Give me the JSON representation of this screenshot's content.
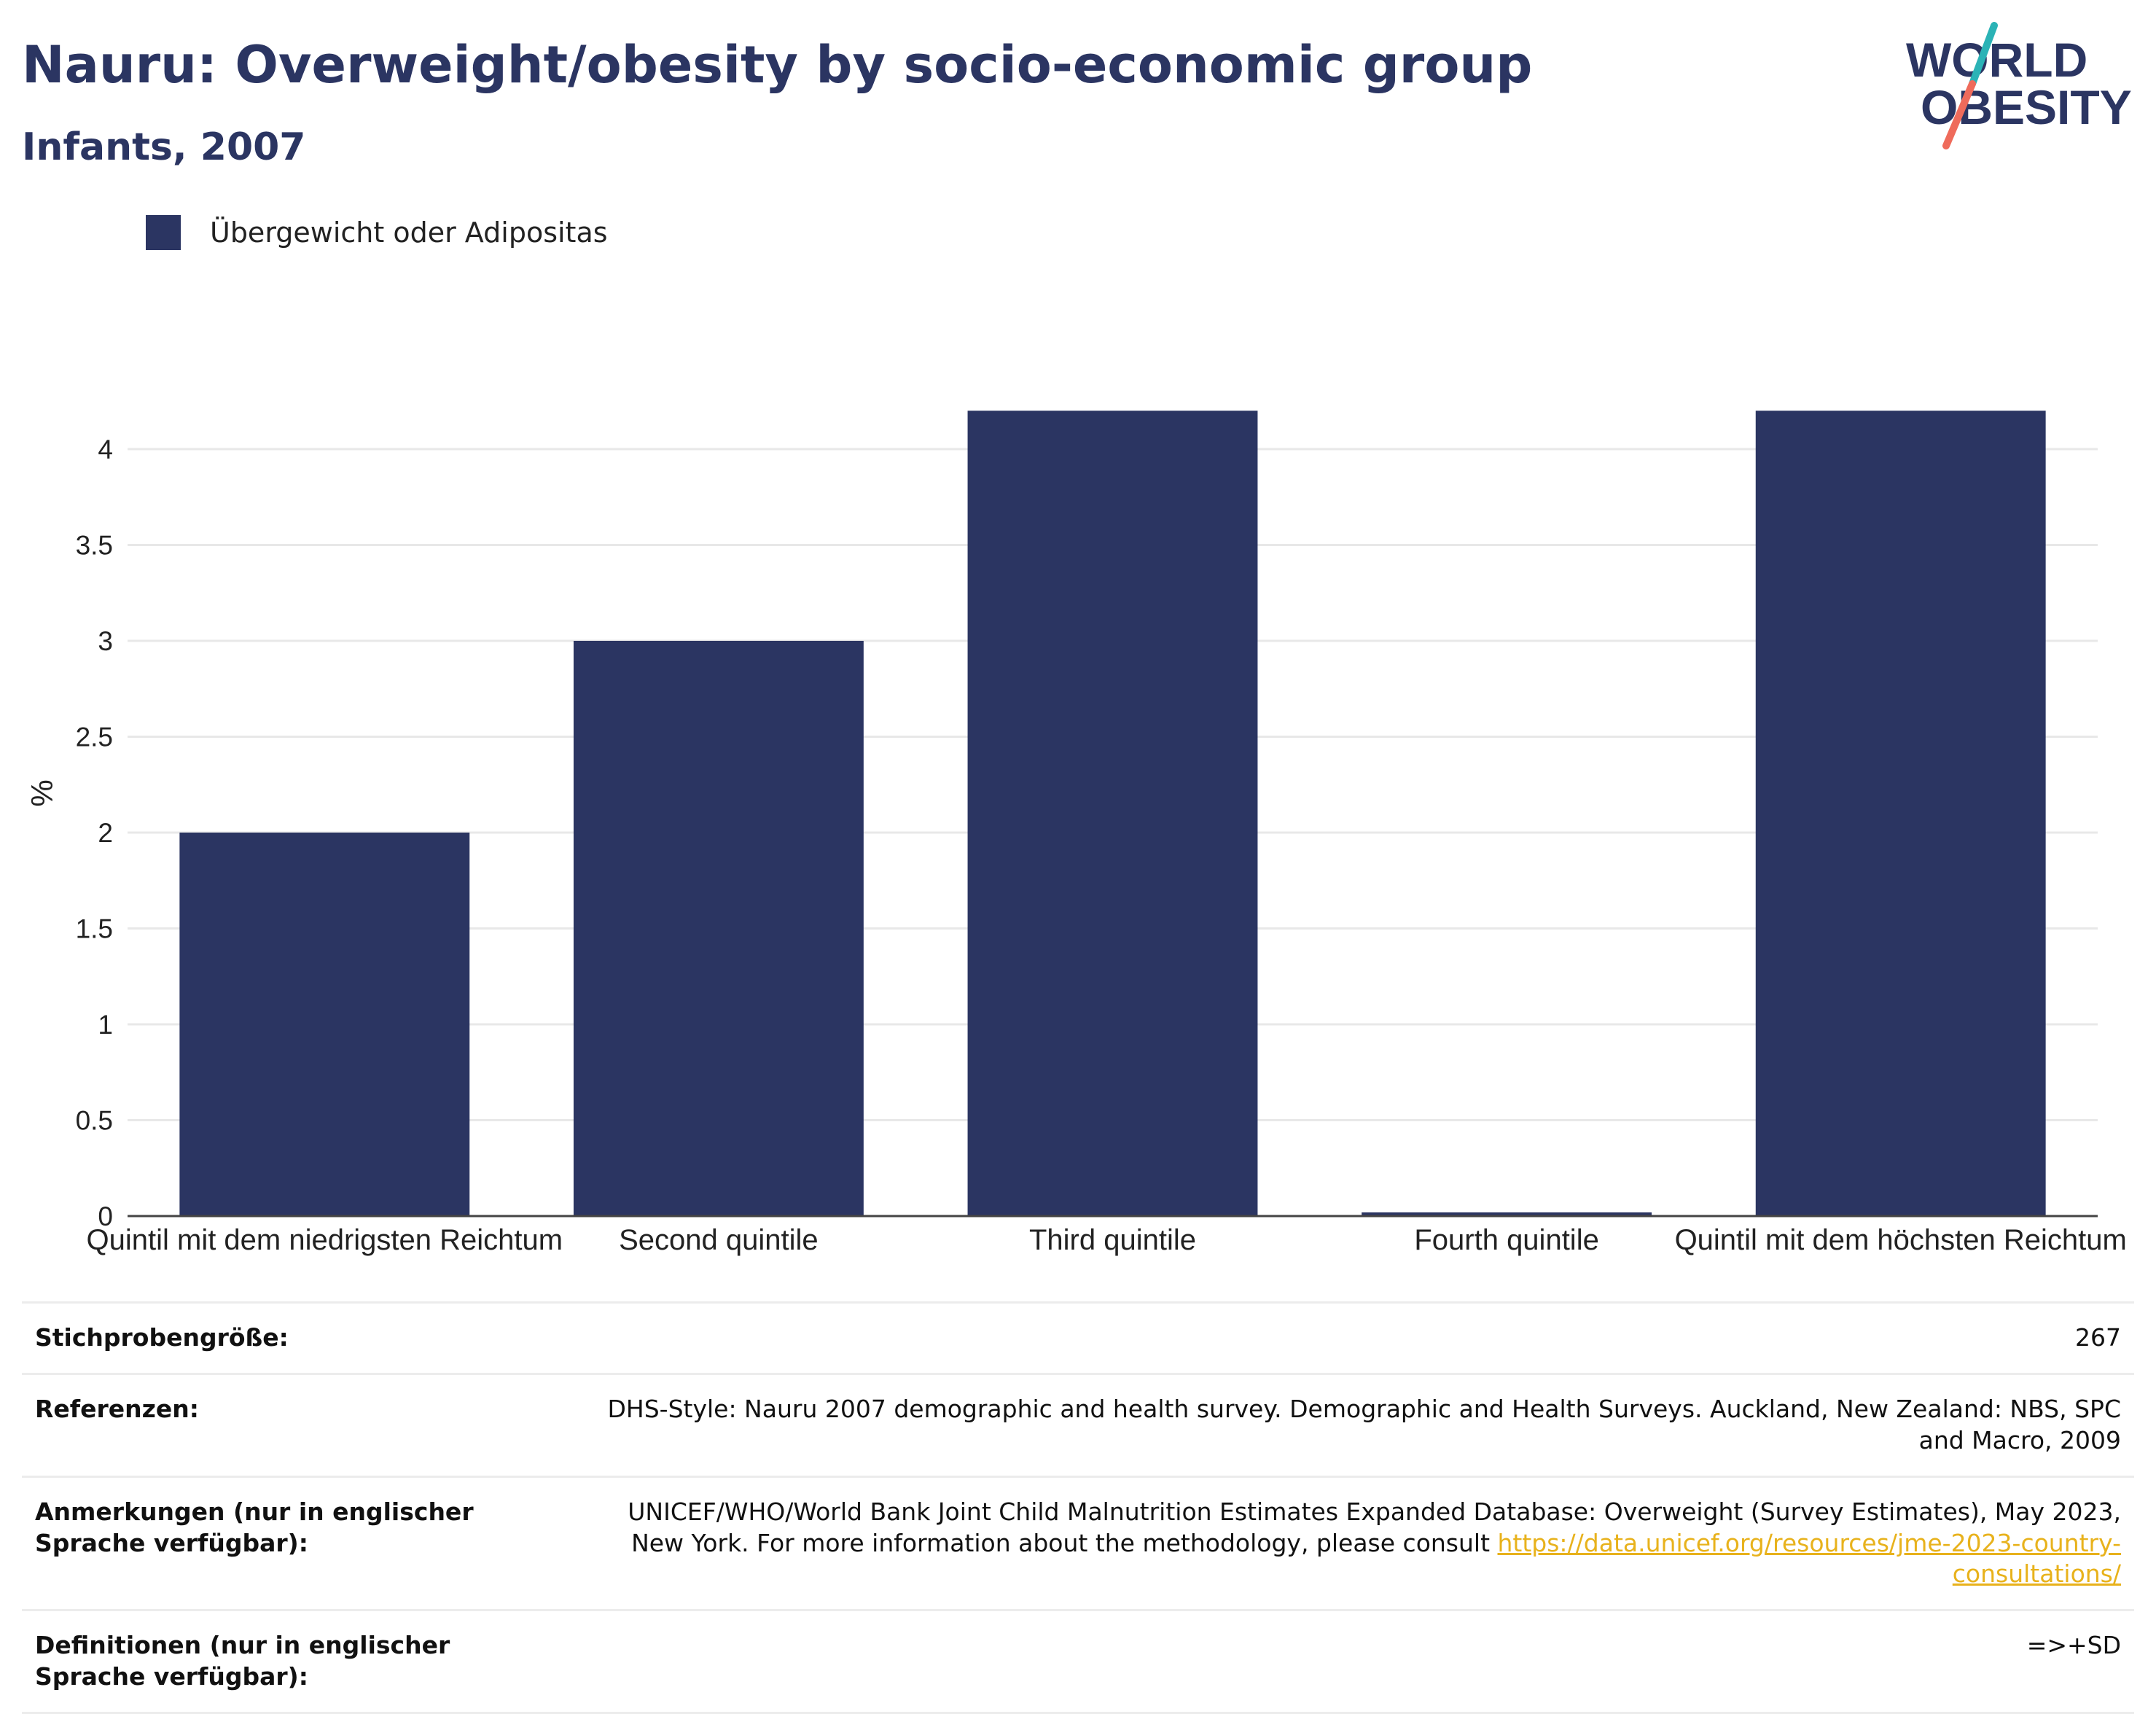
{
  "header": {
    "title": "Nauru: Overweight/obesity by socio-economic group",
    "subtitle": "Infants, 2007"
  },
  "logo": {
    "line1": "WORLD",
    "line2": "OBESITY"
  },
  "colors": {
    "bar": "#2b3562",
    "title": "#2b3562",
    "link": "#e8b21c",
    "logo_teal": "#2bb3b6",
    "logo_coral": "#ef6b5b"
  },
  "chart_data": {
    "type": "bar",
    "categories": [
      "Quintil mit dem niedrigsten Reichtum",
      "Second quintile",
      "Third quintile",
      "Fourth quintile",
      "Quintil mit dem höchsten Reichtum"
    ],
    "series": [
      {
        "name": "Übergewicht oder Adipositas",
        "values": [
          2.0,
          3.0,
          4.2,
          0.0,
          4.2
        ]
      }
    ],
    "ylabel": "%",
    "ylim": [
      0,
      4.2
    ],
    "yticks": [
      0,
      0.5,
      1,
      1.5,
      2,
      2.5,
      3,
      3.5,
      4
    ],
    "ytick_labels": [
      "0",
      "0.5",
      "1",
      "1.5",
      "2",
      "2.5",
      "3",
      "3.5",
      "4"
    ],
    "grid": true,
    "legend_position": "top-left"
  },
  "meta": [
    {
      "key": "Stichprobengröße:",
      "value": "267"
    },
    {
      "key": "Referenzen:",
      "value": "DHS-Style: Nauru 2007 demographic and health survey. Demographic and Health Surveys. Auckland, New Zealand: NBS, SPC and Macro, 2009"
    },
    {
      "key": "Anmerkungen (nur in englischer Sprache verfügbar):",
      "value": "UNICEF/WHO/World Bank Joint Child Malnutrition Estimates Expanded Database: Overweight (Survey Estimates), May 2023, New York. For more information about the methodology, please consult ",
      "link": "https://data.unicef.org/resources/jme-2023-country-consultations/"
    },
    {
      "key": "Definitionen (nur in englischer Sprache verfügbar):",
      "value": "=>+SD"
    }
  ]
}
